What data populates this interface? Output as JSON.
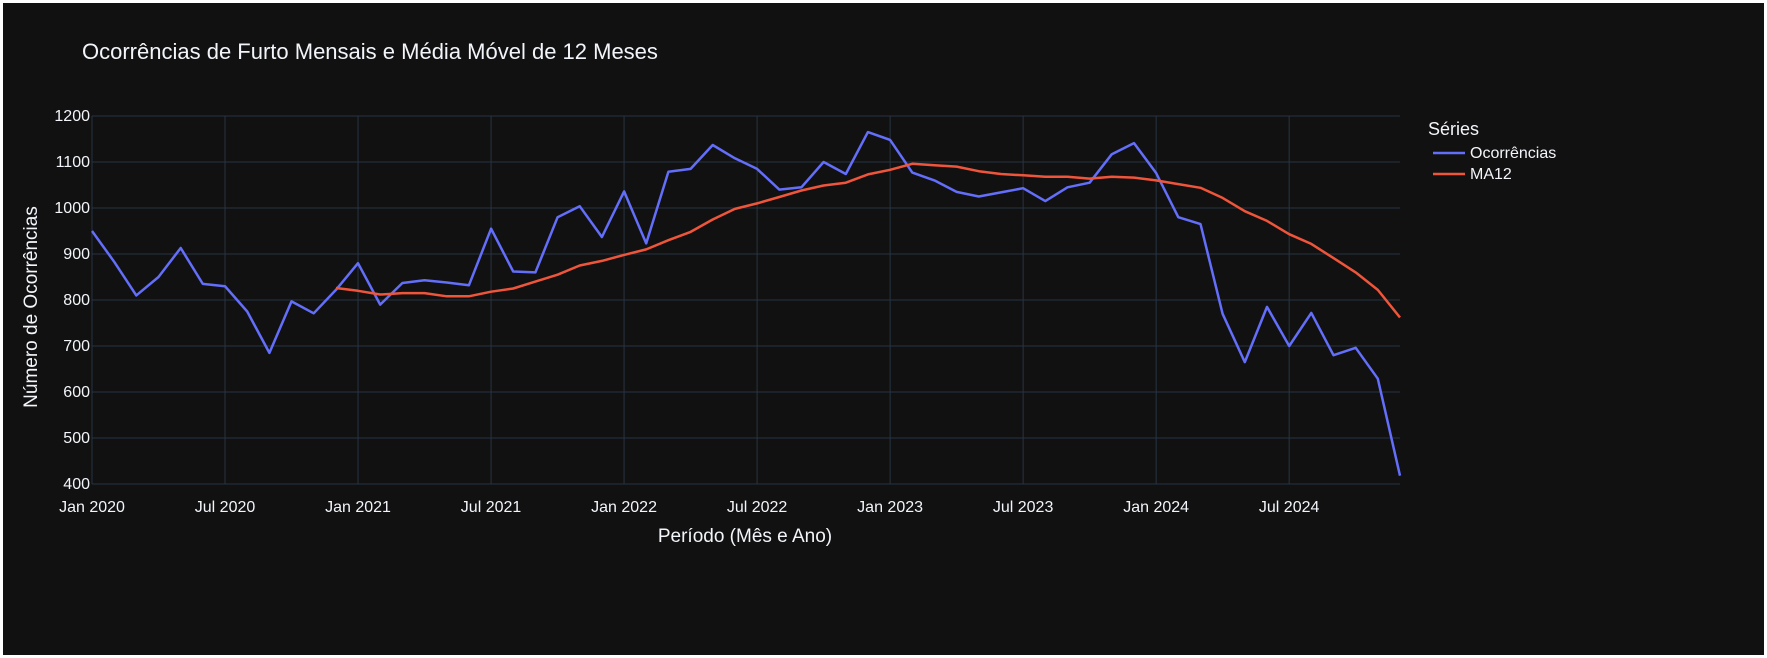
{
  "chart_data": {
    "type": "line",
    "title": "Ocorrências de Furto Mensais e Média Móvel de 12 Meses",
    "xlabel": "Período (Mês e Ano)",
    "ylabel": "Número de Ocorrências",
    "x_ticks": [
      "Jan 2020",
      "Jul 2020",
      "Jan 2021",
      "Jul 2021",
      "Jan 2022",
      "Jul 2022",
      "Jan 2023",
      "Jul 2023",
      "Jan 2024",
      "Jul 2024"
    ],
    "y_ticks": [
      400,
      500,
      600,
      700,
      800,
      900,
      1000,
      1100,
      1200
    ],
    "ylim": [
      400,
      1200
    ],
    "x_range": [
      "2020-01",
      "2024-12"
    ],
    "legend_title": "Séries",
    "legend_position": "top-right",
    "grid": true,
    "background": "#111111",
    "x": [
      "2020-01",
      "2020-02",
      "2020-03",
      "2020-04",
      "2020-05",
      "2020-06",
      "2020-07",
      "2020-08",
      "2020-09",
      "2020-10",
      "2020-11",
      "2020-12",
      "2021-01",
      "2021-02",
      "2021-03",
      "2021-04",
      "2021-05",
      "2021-06",
      "2021-07",
      "2021-08",
      "2021-09",
      "2021-10",
      "2021-11",
      "2021-12",
      "2022-01",
      "2022-02",
      "2022-03",
      "2022-04",
      "2022-05",
      "2022-06",
      "2022-07",
      "2022-08",
      "2022-09",
      "2022-10",
      "2022-11",
      "2022-12",
      "2023-01",
      "2023-02",
      "2023-03",
      "2023-04",
      "2023-05",
      "2023-06",
      "2023-07",
      "2023-08",
      "2023-09",
      "2023-10",
      "2023-11",
      "2023-12",
      "2024-01",
      "2024-02",
      "2024-03",
      "2024-04",
      "2024-05",
      "2024-06",
      "2024-07",
      "2024-08",
      "2024-09",
      "2024-10",
      "2024-11",
      "2024-12"
    ],
    "series": [
      {
        "name": "Ocorrências",
        "color": "#636efa",
        "values": [
          950,
          883,
          810,
          850,
          913,
          835,
          830,
          775,
          685,
          797,
          771,
          822,
          880,
          790,
          837,
          843,
          838,
          832,
          955,
          862,
          860,
          980,
          1004,
          937,
          1036,
          923,
          1079,
          1085,
          1137,
          1108,
          1085,
          1040,
          1045,
          1100,
          1074,
          1165,
          1148,
          1077,
          1060,
          1035,
          1025,
          1034,
          1043,
          1015,
          1045,
          1055,
          1117,
          1141,
          1076,
          980,
          965,
          770,
          665,
          785,
          700,
          772,
          680,
          696,
          629,
          418
        ]
      },
      {
        "name": "MA12",
        "color": "#ef553b",
        "values": [
          null,
          null,
          null,
          null,
          null,
          null,
          null,
          null,
          null,
          null,
          null,
          826,
          820,
          812,
          815,
          815,
          808,
          808,
          818,
          825,
          840,
          855,
          875,
          885,
          898,
          910,
          930,
          948,
          975,
          998,
          1010,
          1024,
          1038,
          1049,
          1055,
          1073,
          1083,
          1096,
          1093,
          1090,
          1080,
          1074,
          1071,
          1068,
          1068,
          1064,
          1068,
          1066,
          1060,
          1052,
          1044,
          1022,
          993,
          972,
          943,
          922,
          891,
          860,
          822,
          762
        ]
      }
    ]
  }
}
